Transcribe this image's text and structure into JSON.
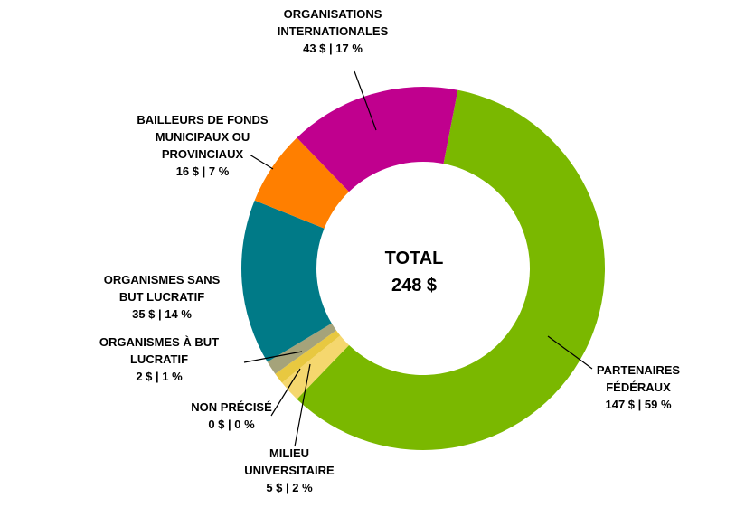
{
  "chart_data": {
    "type": "pie",
    "variant": "donut",
    "center_label": "TOTAL",
    "center_value": "248 $",
    "slices": [
      {
        "name_lines": [
          "PARTENAIRES",
          "FÉDÉRAUX"
        ],
        "value": 147,
        "value_text": "147 $ | 59 %",
        "color": "#7ab800"
      },
      {
        "name_lines": [
          "MILIEU",
          "UNIVERSITAIRE"
        ],
        "value": 5,
        "value_text": "5 $ | 2 %",
        "color": "#f5d76e"
      },
      {
        "name_lines": [
          "NON PRÉCISÉ"
        ],
        "value": 0,
        "value_text": "0 $ | 0 %",
        "color": "#e8c840"
      },
      {
        "name_lines": [
          "ORGANISMES À BUT",
          "LUCRATIF"
        ],
        "value": 2,
        "value_text": "2 $ | 1 %",
        "color": "#a5a37a"
      },
      {
        "name_lines": [
          "ORGANISMES SANS",
          "BUT LUCRATIF"
        ],
        "value": 35,
        "value_text": "35 $ | 14 %",
        "color": "#007a87"
      },
      {
        "name_lines": [
          "BAILLEURS DE FONDS",
          "MUNICIPAUX OU",
          "PROVINCIAUX"
        ],
        "value": 16,
        "value_text": "16 $ | 7 %",
        "color": "#ff7f00"
      },
      {
        "name_lines": [
          "ORGANISATIONS",
          "INTERNATIONALES"
        ],
        "value": 43,
        "value_text": "43 $ | 17 %",
        "color": "#c0008e"
      }
    ]
  }
}
